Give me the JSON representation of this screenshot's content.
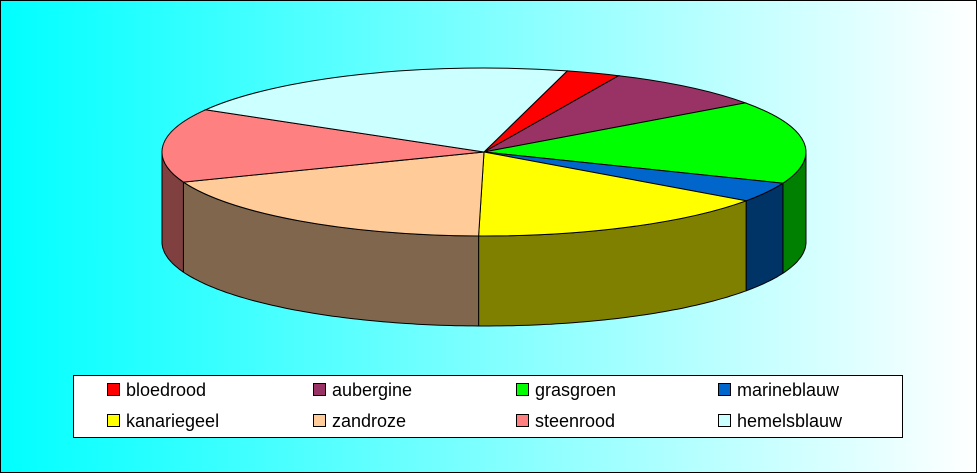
{
  "chart_data": {
    "type": "pie3d",
    "categories": [
      "bloedrood",
      "aubergine",
      "grasgroen",
      "marineblauw",
      "kanariegeel",
      "zandroze",
      "steenrood",
      "hemelsblauw"
    ],
    "values": [
      2.7,
      8.2,
      16,
      3.8,
      15.4,
      18.9,
      14.2,
      20.8
    ],
    "colors": [
      "#ff0000",
      "#993366",
      "#00ff00",
      "#0066cc",
      "#ffff00",
      "#ffcc99",
      "#ff8080",
      "#ccffff"
    ],
    "start_angle": 75,
    "legend": "bottom"
  }
}
